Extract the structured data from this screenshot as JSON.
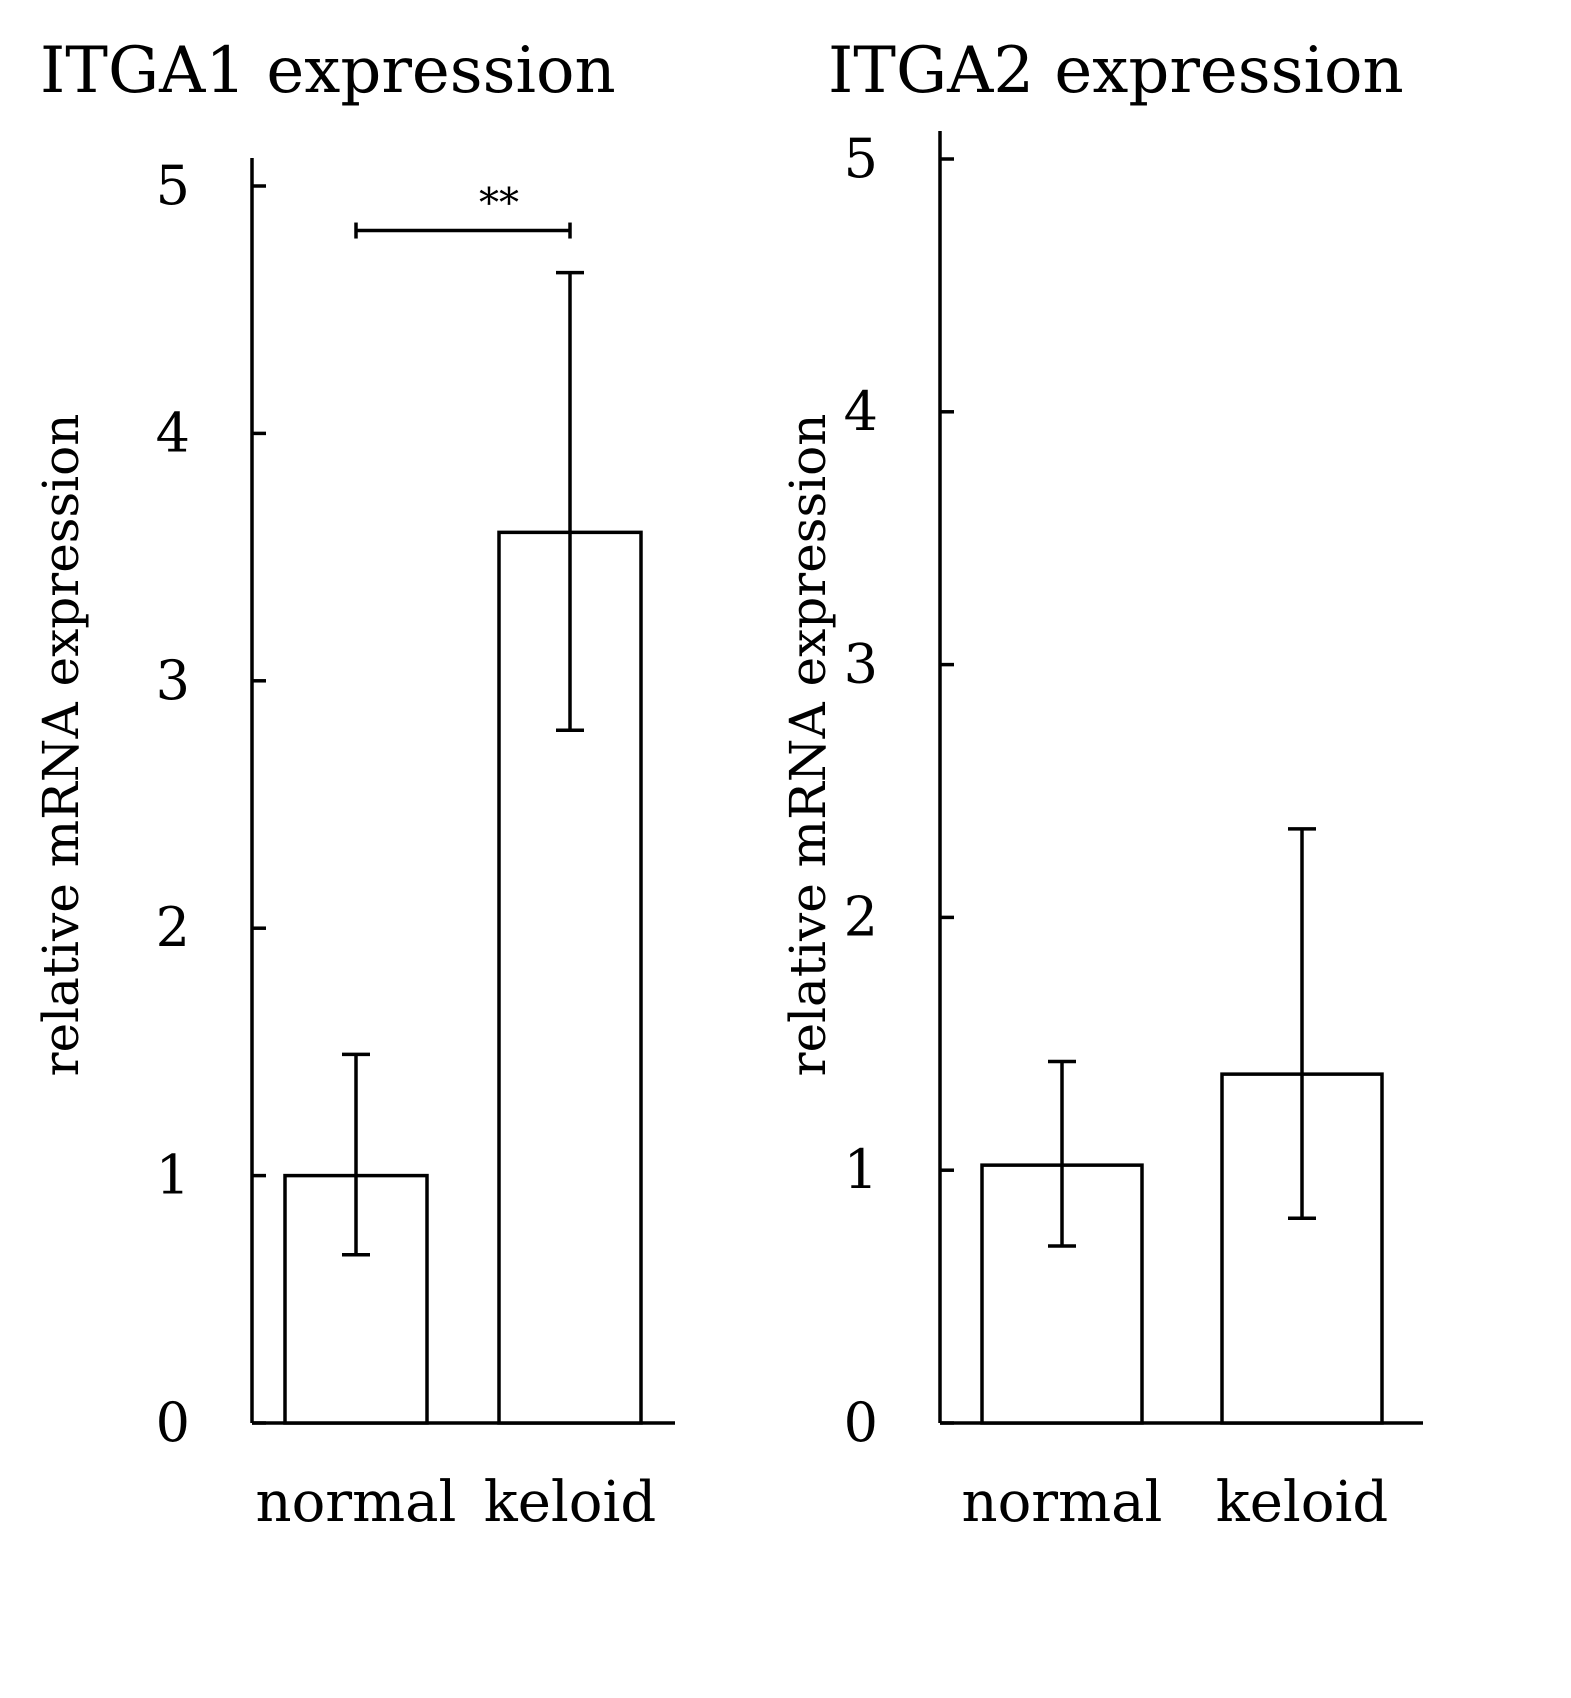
{
  "chart_data": [
    {
      "type": "bar",
      "title": "ITGA1 expression",
      "ylabel": "relative mRNA expression",
      "xlabel": "",
      "ylim": [
        0,
        5
      ],
      "yticks": [
        "0",
        "1",
        "2",
        "3",
        "4",
        "5"
      ],
      "categories": [
        "normal",
        "keloid"
      ],
      "values": [
        1.0,
        3.6
      ],
      "error_low": [
        0.68,
        2.8
      ],
      "error_high": [
        1.49,
        4.65
      ],
      "significance": [
        {
          "from": 0,
          "to": 1,
          "y": 4.82,
          "label": "**"
        }
      ]
    },
    {
      "type": "bar",
      "title": "ITGA2 expression",
      "ylabel": "relative mRNA expression",
      "xlabel": "",
      "ylim": [
        0,
        5
      ],
      "yticks": [
        "0",
        "1",
        "2",
        "3",
        "4",
        "5"
      ],
      "categories": [
        "normal",
        "keloid"
      ],
      "values": [
        1.02,
        1.38
      ],
      "error_low": [
        0.7,
        0.81
      ],
      "error_high": [
        1.43,
        2.35
      ],
      "significance": []
    }
  ]
}
